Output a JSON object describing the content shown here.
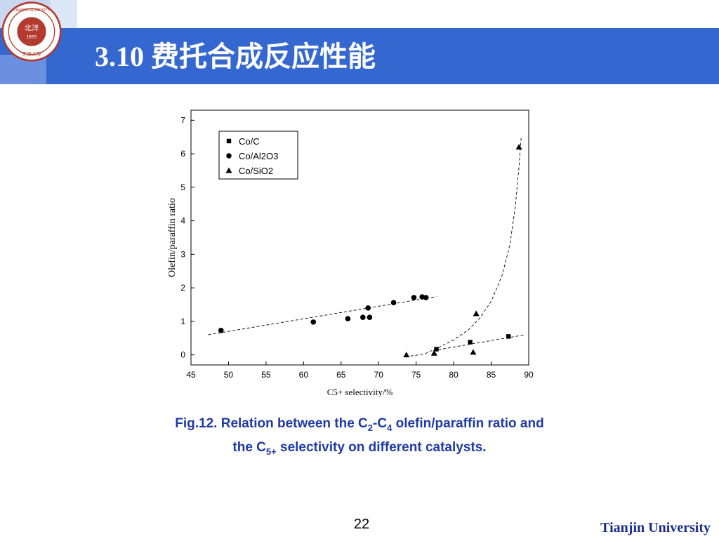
{
  "slide": {
    "title": "3.10 费托合成反应性能",
    "page_number": "22",
    "footer": "Tianjin University",
    "logo_text": "TIANJIN UNIVERSITY (PEIYANG UNIVERSITY) 北洋 1895 天津大學"
  },
  "caption": {
    "line1_prefix": "Fig.12. Relation between the C",
    "sub_a": "2",
    "dash": "-C",
    "sub_b": "4",
    "line1_suffix": " olefin/paraffin ratio and",
    "line2_prefix": "the C",
    "sub_c": "5+",
    "line2_suffix": " selectivity on different catalysts."
  },
  "chart_data": {
    "type": "scatter",
    "xlabel": "C5+ selectivity/%",
    "ylabel": "Olefin/paraffin ratio",
    "xlim": [
      45,
      90
    ],
    "ylim": [
      -0.3,
      7.3
    ],
    "x_ticks": [
      45,
      50,
      55,
      60,
      65,
      70,
      75,
      80,
      85,
      90
    ],
    "y_ticks": [
      0,
      1,
      2,
      3,
      4,
      5,
      6,
      7
    ],
    "legend_position": "top-left",
    "series": [
      {
        "name": "Co/C",
        "marker": "square",
        "points": [
          [
            77.7,
            0.17
          ],
          [
            82.2,
            0.38
          ],
          [
            87.3,
            0.55
          ]
        ],
        "trend": [
          [
            77.3,
            0.13
          ],
          [
            89.5,
            0.6
          ]
        ]
      },
      {
        "name": "Co/Al2O3",
        "marker": "circle",
        "points": [
          [
            49.0,
            0.73
          ],
          [
            61.3,
            0.98
          ],
          [
            65.9,
            1.08
          ],
          [
            67.9,
            1.12
          ],
          [
            68.6,
            1.4
          ],
          [
            68.8,
            1.12
          ],
          [
            72.0,
            1.56
          ],
          [
            74.7,
            1.71
          ],
          [
            75.8,
            1.73
          ],
          [
            76.3,
            1.71
          ]
        ],
        "trend": [
          [
            47.3,
            0.6
          ],
          [
            77.7,
            1.74
          ]
        ]
      },
      {
        "name": "Co/SiO2",
        "marker": "triangle",
        "points": [
          [
            73.7,
            0.0
          ],
          [
            77.4,
            0.05
          ],
          [
            82.6,
            0.08
          ],
          [
            83.0,
            1.23
          ],
          [
            88.7,
            6.2
          ]
        ],
        "trend": [
          [
            73.6,
            -0.05
          ],
          [
            76.0,
            0.02
          ],
          [
            78.0,
            0.22
          ],
          [
            80.0,
            0.45
          ],
          [
            82.0,
            0.75
          ],
          [
            83.5,
            1.1
          ],
          [
            85.0,
            1.6
          ],
          [
            86.5,
            2.4
          ],
          [
            87.5,
            3.3
          ],
          [
            88.2,
            4.4
          ],
          [
            88.7,
            5.6
          ],
          [
            89.0,
            6.5
          ]
        ]
      }
    ]
  }
}
